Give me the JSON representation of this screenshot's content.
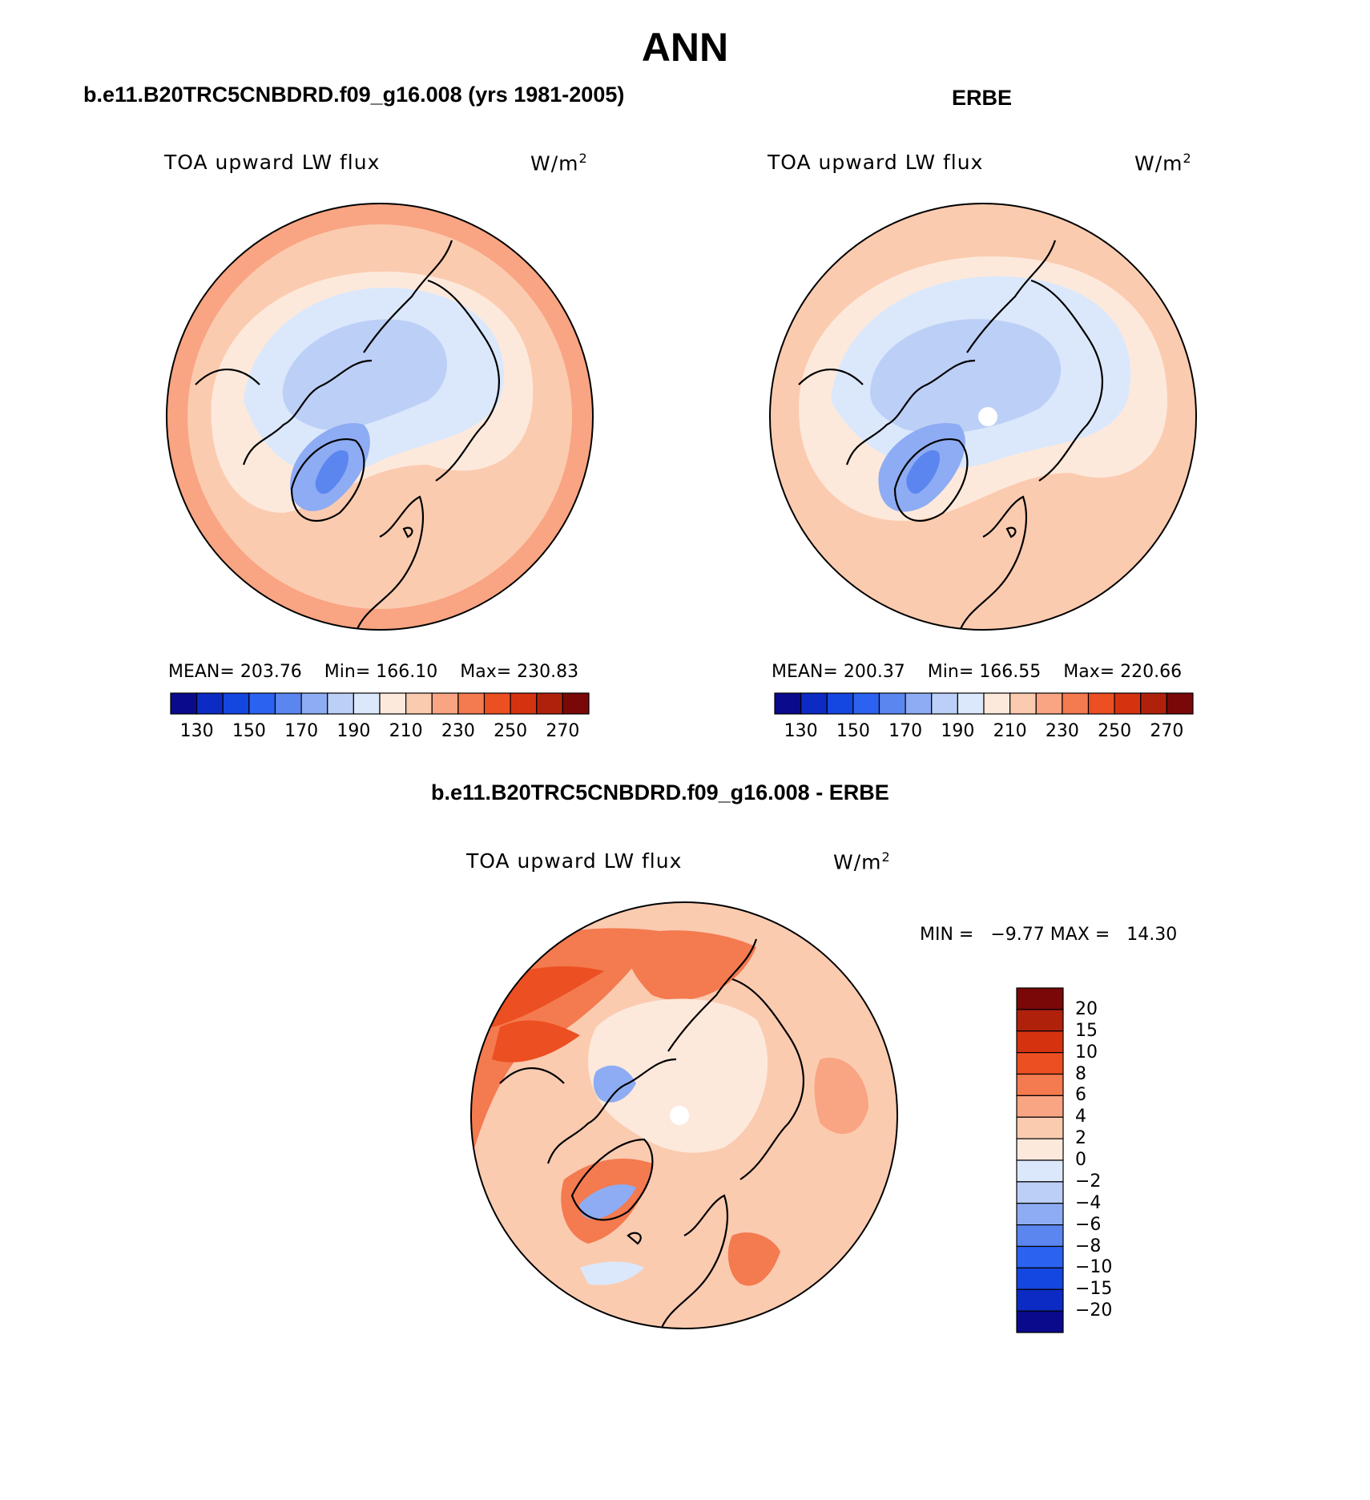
{
  "figure": {
    "title": "ANN",
    "colors": {
      "abs_scale": [
        "#0a0a8c",
        "#0c2bc4",
        "#1446e0",
        "#2b62ef",
        "#5b86f0",
        "#8eacf3",
        "#bccff6",
        "#dbe8fb",
        "#fde9dc",
        "#fbcbb0",
        "#f9a482",
        "#f47a4f",
        "#ec4f22",
        "#d53310",
        "#b0210b",
        "#7a0808"
      ],
      "diff_scale": [
        "#0a0a8c",
        "#0c2bc4",
        "#1446e0",
        "#2b62ef",
        "#5b86f0",
        "#8eacf3",
        "#bccff6",
        "#dbe8fb",
        "#fde9dc",
        "#fbcbb0",
        "#f9a482",
        "#f47a4f",
        "#ec4f22",
        "#d53310",
        "#b0210b",
        "#7a0808"
      ]
    }
  },
  "panels": [
    {
      "heading": "b.e11.B20TRC5CNBDRD.f09_g16.008 (yrs 1981-2005)",
      "variable": "TOA upward LW flux",
      "units_base": "W/m",
      "units_exp": "2",
      "mean_label": "MEAN=",
      "mean": "203.76",
      "min_label": "Min=",
      "min": "166.10",
      "max_label": "Max=",
      "max": "230.83",
      "colorbar_ticks": [
        "130",
        "150",
        "170",
        "190",
        "210",
        "230",
        "250",
        "270"
      ]
    },
    {
      "heading": "ERBE",
      "variable": "TOA upward LW flux",
      "units_base": "W/m",
      "units_exp": "2",
      "mean_label": "MEAN=",
      "mean": "200.37",
      "min_label": "Min=",
      "min": "166.55",
      "max_label": "Max=",
      "max": "220.66",
      "colorbar_ticks": [
        "130",
        "150",
        "170",
        "190",
        "210",
        "230",
        "250",
        "270"
      ]
    }
  ],
  "difference": {
    "heading": "b.e11.B20TRC5CNBDRD.f09_g16.008 - ERBE",
    "variable": "TOA upward LW flux",
    "units_base": "W/m",
    "units_exp": "2",
    "min_label": "MIN =",
    "min": "−9.77",
    "max_label": "MAX =",
    "max": "14.30",
    "colorbar_ticks": [
      "20",
      "15",
      "10",
      "8",
      "6",
      "4",
      "2",
      "0",
      "−2",
      "−4",
      "−6",
      "−8",
      "−10",
      "−15",
      "−20"
    ]
  }
}
